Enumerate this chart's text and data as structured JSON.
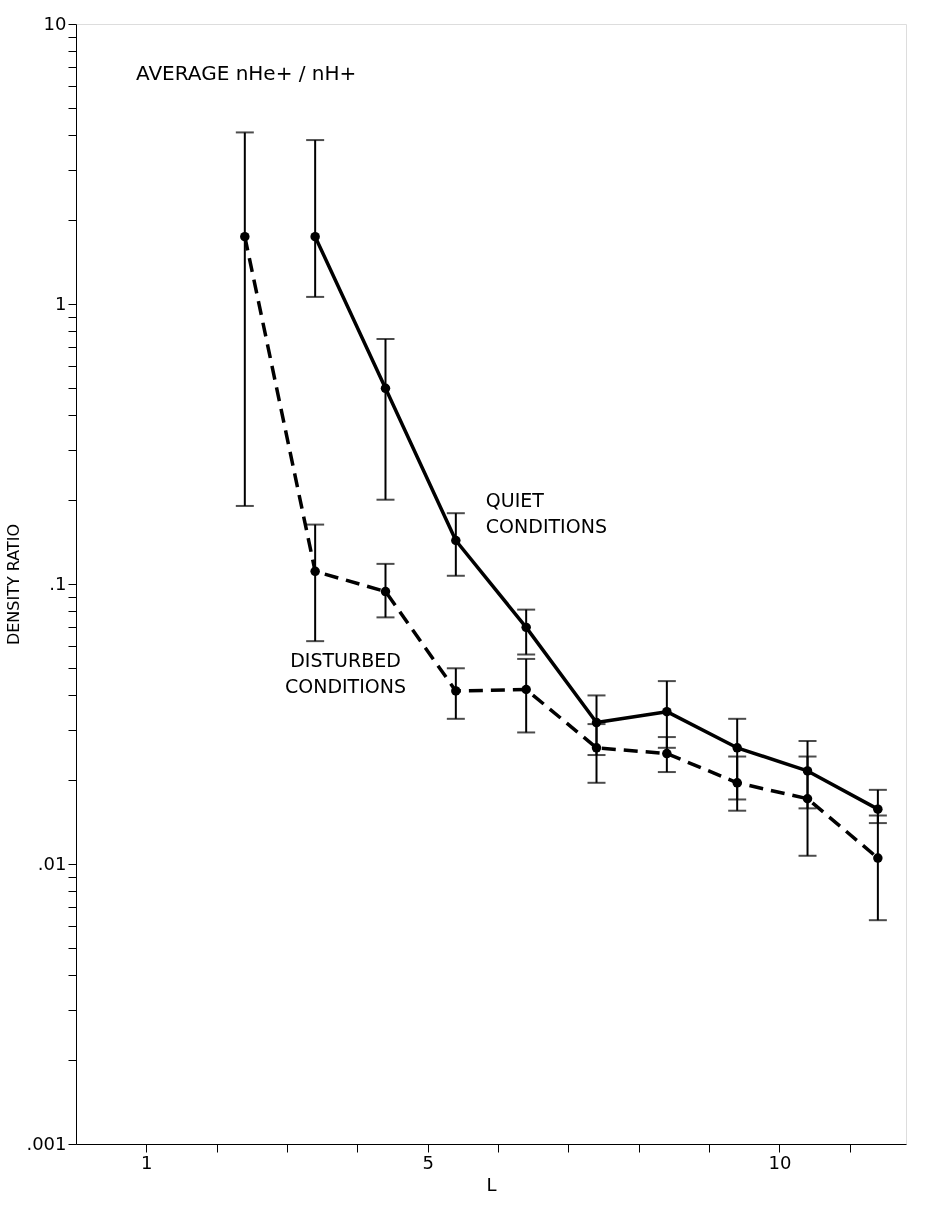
{
  "chart_data": {
    "type": "line",
    "title": "AVERAGE nHe+ / nH+",
    "xlabel": "L",
    "ylabel": "DENSITY RATIO",
    "log": "y",
    "grid": false,
    "marker": "circle",
    "xlim": [
      0,
      11.8
    ],
    "xticks": [
      1,
      {
        "value": 2,
        "label": null
      },
      {
        "value": 3,
        "label": null
      },
      {
        "value": 4,
        "label": null
      },
      5,
      {
        "value": 6,
        "label": null
      },
      {
        "value": 7,
        "label": null
      },
      {
        "value": 8,
        "label": null
      },
      {
        "value": 9,
        "label": null
      },
      10,
      {
        "value": 11,
        "label": null
      }
    ],
    "ylim": [
      0.001,
      10
    ],
    "yticks": [
      {
        "value": 0.001,
        "label": ".001"
      },
      {
        "value": 0.002,
        "label": null
      },
      {
        "value": 0.003,
        "label": null
      },
      {
        "value": 0.004,
        "label": null
      },
      {
        "value": 0.005,
        "label": null
      },
      {
        "value": 0.006,
        "label": null
      },
      {
        "value": 0.007,
        "label": null
      },
      {
        "value": 0.008,
        "label": null
      },
      {
        "value": 0.009,
        "label": null
      },
      {
        "value": 0.01,
        "label": ".01"
      },
      {
        "value": 0.02,
        "label": null
      },
      {
        "value": 0.03,
        "label": null
      },
      {
        "value": 0.04,
        "label": null
      },
      {
        "value": 0.05,
        "label": null
      },
      {
        "value": 0.06,
        "label": null
      },
      {
        "value": 0.07,
        "label": null
      },
      {
        "value": 0.08,
        "label": null
      },
      {
        "value": 0.09,
        "label": null
      },
      {
        "value": 0.1,
        "label": ".1"
      },
      {
        "value": 0.2,
        "label": null
      },
      {
        "value": 0.3,
        "label": null
      },
      {
        "value": 0.4,
        "label": null
      },
      {
        "value": 0.5,
        "label": null
      },
      {
        "value": 0.6,
        "label": null
      },
      {
        "value": 0.7,
        "label": null
      },
      {
        "value": 0.8,
        "label": null
      },
      {
        "value": 0.9,
        "label": null
      },
      1,
      {
        "value": 2,
        "label": null
      },
      {
        "value": 3,
        "label": null
      },
      {
        "value": 4,
        "label": null
      },
      {
        "value": 5,
        "label": null
      },
      {
        "value": 6,
        "label": null
      },
      {
        "value": 7,
        "label": null
      },
      {
        "value": 8,
        "label": null
      },
      {
        "value": 9,
        "label": null
      },
      10
    ],
    "series": [
      {
        "name": "QUIET CONDITIONS",
        "color": "#000000",
        "line_style": "solid",
        "x": [
          3.4,
          4.4,
          5.4,
          6.4,
          7.4,
          8.4,
          9.4,
          10.4,
          11.4
        ],
        "values": [
          1.74,
          0.5,
          0.143,
          0.07,
          0.032,
          0.035,
          0.026,
          0.0215,
          0.0157
        ],
        "errors": [
          [
            1.06,
            3.85
          ],
          [
            0.2,
            0.75
          ],
          [
            0.107,
            0.179
          ],
          [
            0.056,
            0.081
          ],
          [
            0.0245,
            0.04
          ],
          [
            0.026,
            0.045
          ],
          [
            0.017,
            0.033
          ],
          [
            0.0158,
            0.0275
          ],
          [
            0.014,
            0.0184
          ]
        ]
      },
      {
        "name": "DISTURBED CONDITIONS",
        "color": "#000000",
        "line_style": "dashed",
        "x": [
          2.4,
          3.4,
          4.4,
          5.4,
          6.4,
          7.4,
          8.4,
          9.4,
          10.4,
          11.4
        ],
        "values": [
          1.74,
          0.111,
          0.094,
          0.0415,
          0.042,
          0.026,
          0.0248,
          0.0195,
          0.0171,
          0.0105
        ],
        "errors": [
          [
            0.19,
            4.1
          ],
          [
            0.0625,
            0.163
          ],
          [
            0.076,
            0.118
          ],
          [
            0.033,
            0.05
          ],
          [
            0.0295,
            0.054
          ],
          [
            0.0195,
            0.0316
          ],
          [
            0.0213,
            0.0284
          ],
          [
            0.0155,
            0.0242
          ],
          [
            0.0107,
            0.0242
          ],
          [
            0.0063,
            0.0149
          ]
        ]
      }
    ]
  }
}
